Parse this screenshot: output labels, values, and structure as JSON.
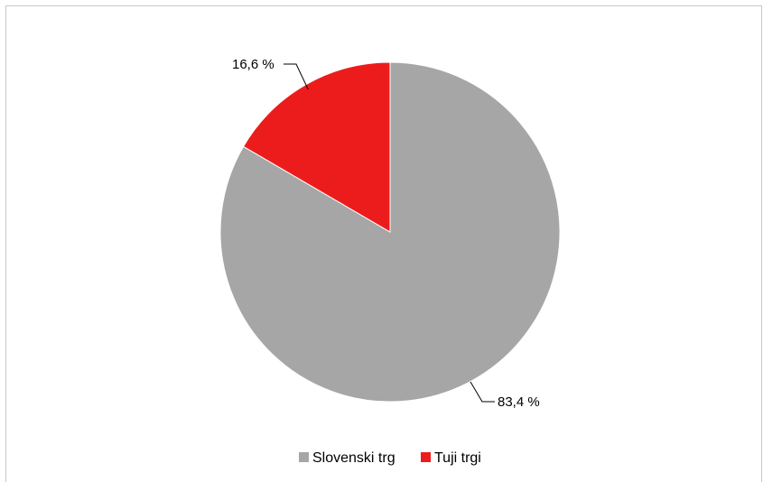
{
  "chart_data": {
    "type": "pie",
    "title": "",
    "slices": [
      {
        "label": "Slovenski trg",
        "value": 83.4,
        "display": "83,4 %",
        "color": "#a6a6a6"
      },
      {
        "label": "Tuji trgi",
        "value": 16.6,
        "display": "16,6 %",
        "color": "#ed1c1c"
      }
    ],
    "start_angle_deg": 0,
    "direction": "clockwise",
    "legend": {
      "placement": "bottom",
      "items": [
        "Slovenski trg",
        "Tuji trgi"
      ]
    }
  }
}
